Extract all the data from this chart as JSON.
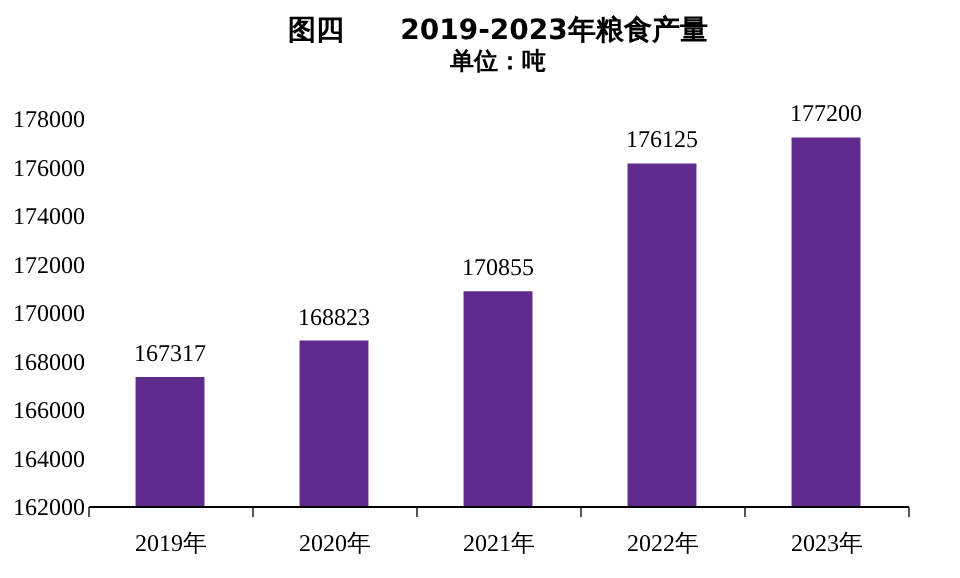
{
  "chart_data": {
    "type": "bar",
    "title": "图四　　2019-2023年粮食产量",
    "subtitle": "单位：吨",
    "categories": [
      "2019年",
      "2020年",
      "2021年",
      "2022年",
      "2023年"
    ],
    "values": [
      167317,
      168823,
      170855,
      176125,
      177200
    ],
    "color": "#5e2a8c",
    "ylim": [
      162000,
      178000
    ],
    "yticks": [
      162000,
      164000,
      166000,
      168000,
      170000,
      172000,
      174000,
      176000,
      178000
    ],
    "data_labels": true
  }
}
